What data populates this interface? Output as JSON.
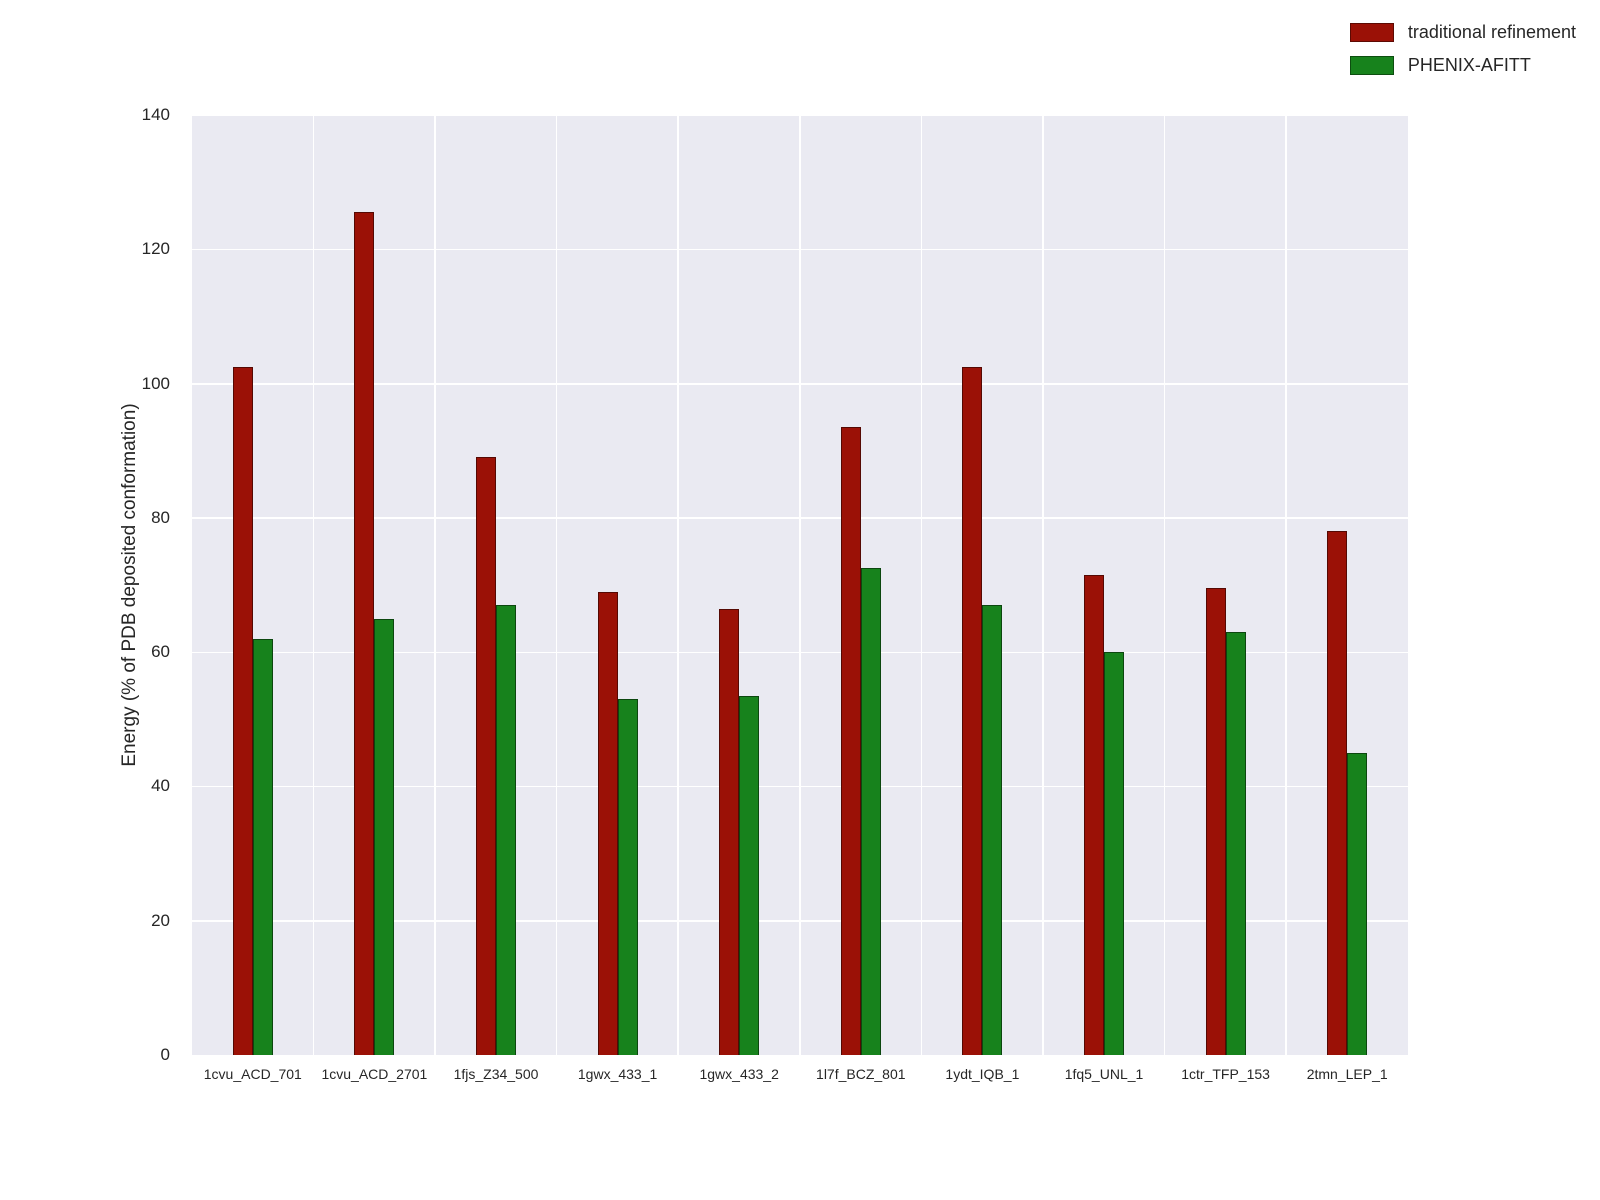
{
  "chart_data": {
    "type": "bar",
    "title": "",
    "xlabel": "",
    "ylabel": "Energy (% of PDB deposited conformation)",
    "ylim": [
      0,
      140
    ],
    "yticks": [
      0,
      20,
      40,
      60,
      80,
      100,
      120,
      140
    ],
    "grid": true,
    "plot_background": "#eaeaf2",
    "gridline_color": "#ffffff",
    "legend_position": "upper right",
    "categories": [
      "1cvu_ACD_701",
      "1cvu_ACD_2701",
      "1fjs_Z34_500",
      "1gwx_433_1",
      "1gwx_433_2",
      "1l7f_BCZ_801",
      "1ydt_IQB_1",
      "1fq5_UNL_1",
      "1ctr_TFP_153",
      "2tmn_LEP_1"
    ],
    "series": [
      {
        "name": "traditional refinement",
        "color": "#9b1106",
        "values": [
          102.5,
          125.5,
          89,
          69,
          66.5,
          93.5,
          102.5,
          71.5,
          69.5,
          78
        ]
      },
      {
        "name": "PHENIX-AFITT",
        "color": "#17821c",
        "values": [
          62,
          65,
          67,
          53,
          53.5,
          72.5,
          67,
          60,
          63,
          45
        ]
      }
    ]
  }
}
